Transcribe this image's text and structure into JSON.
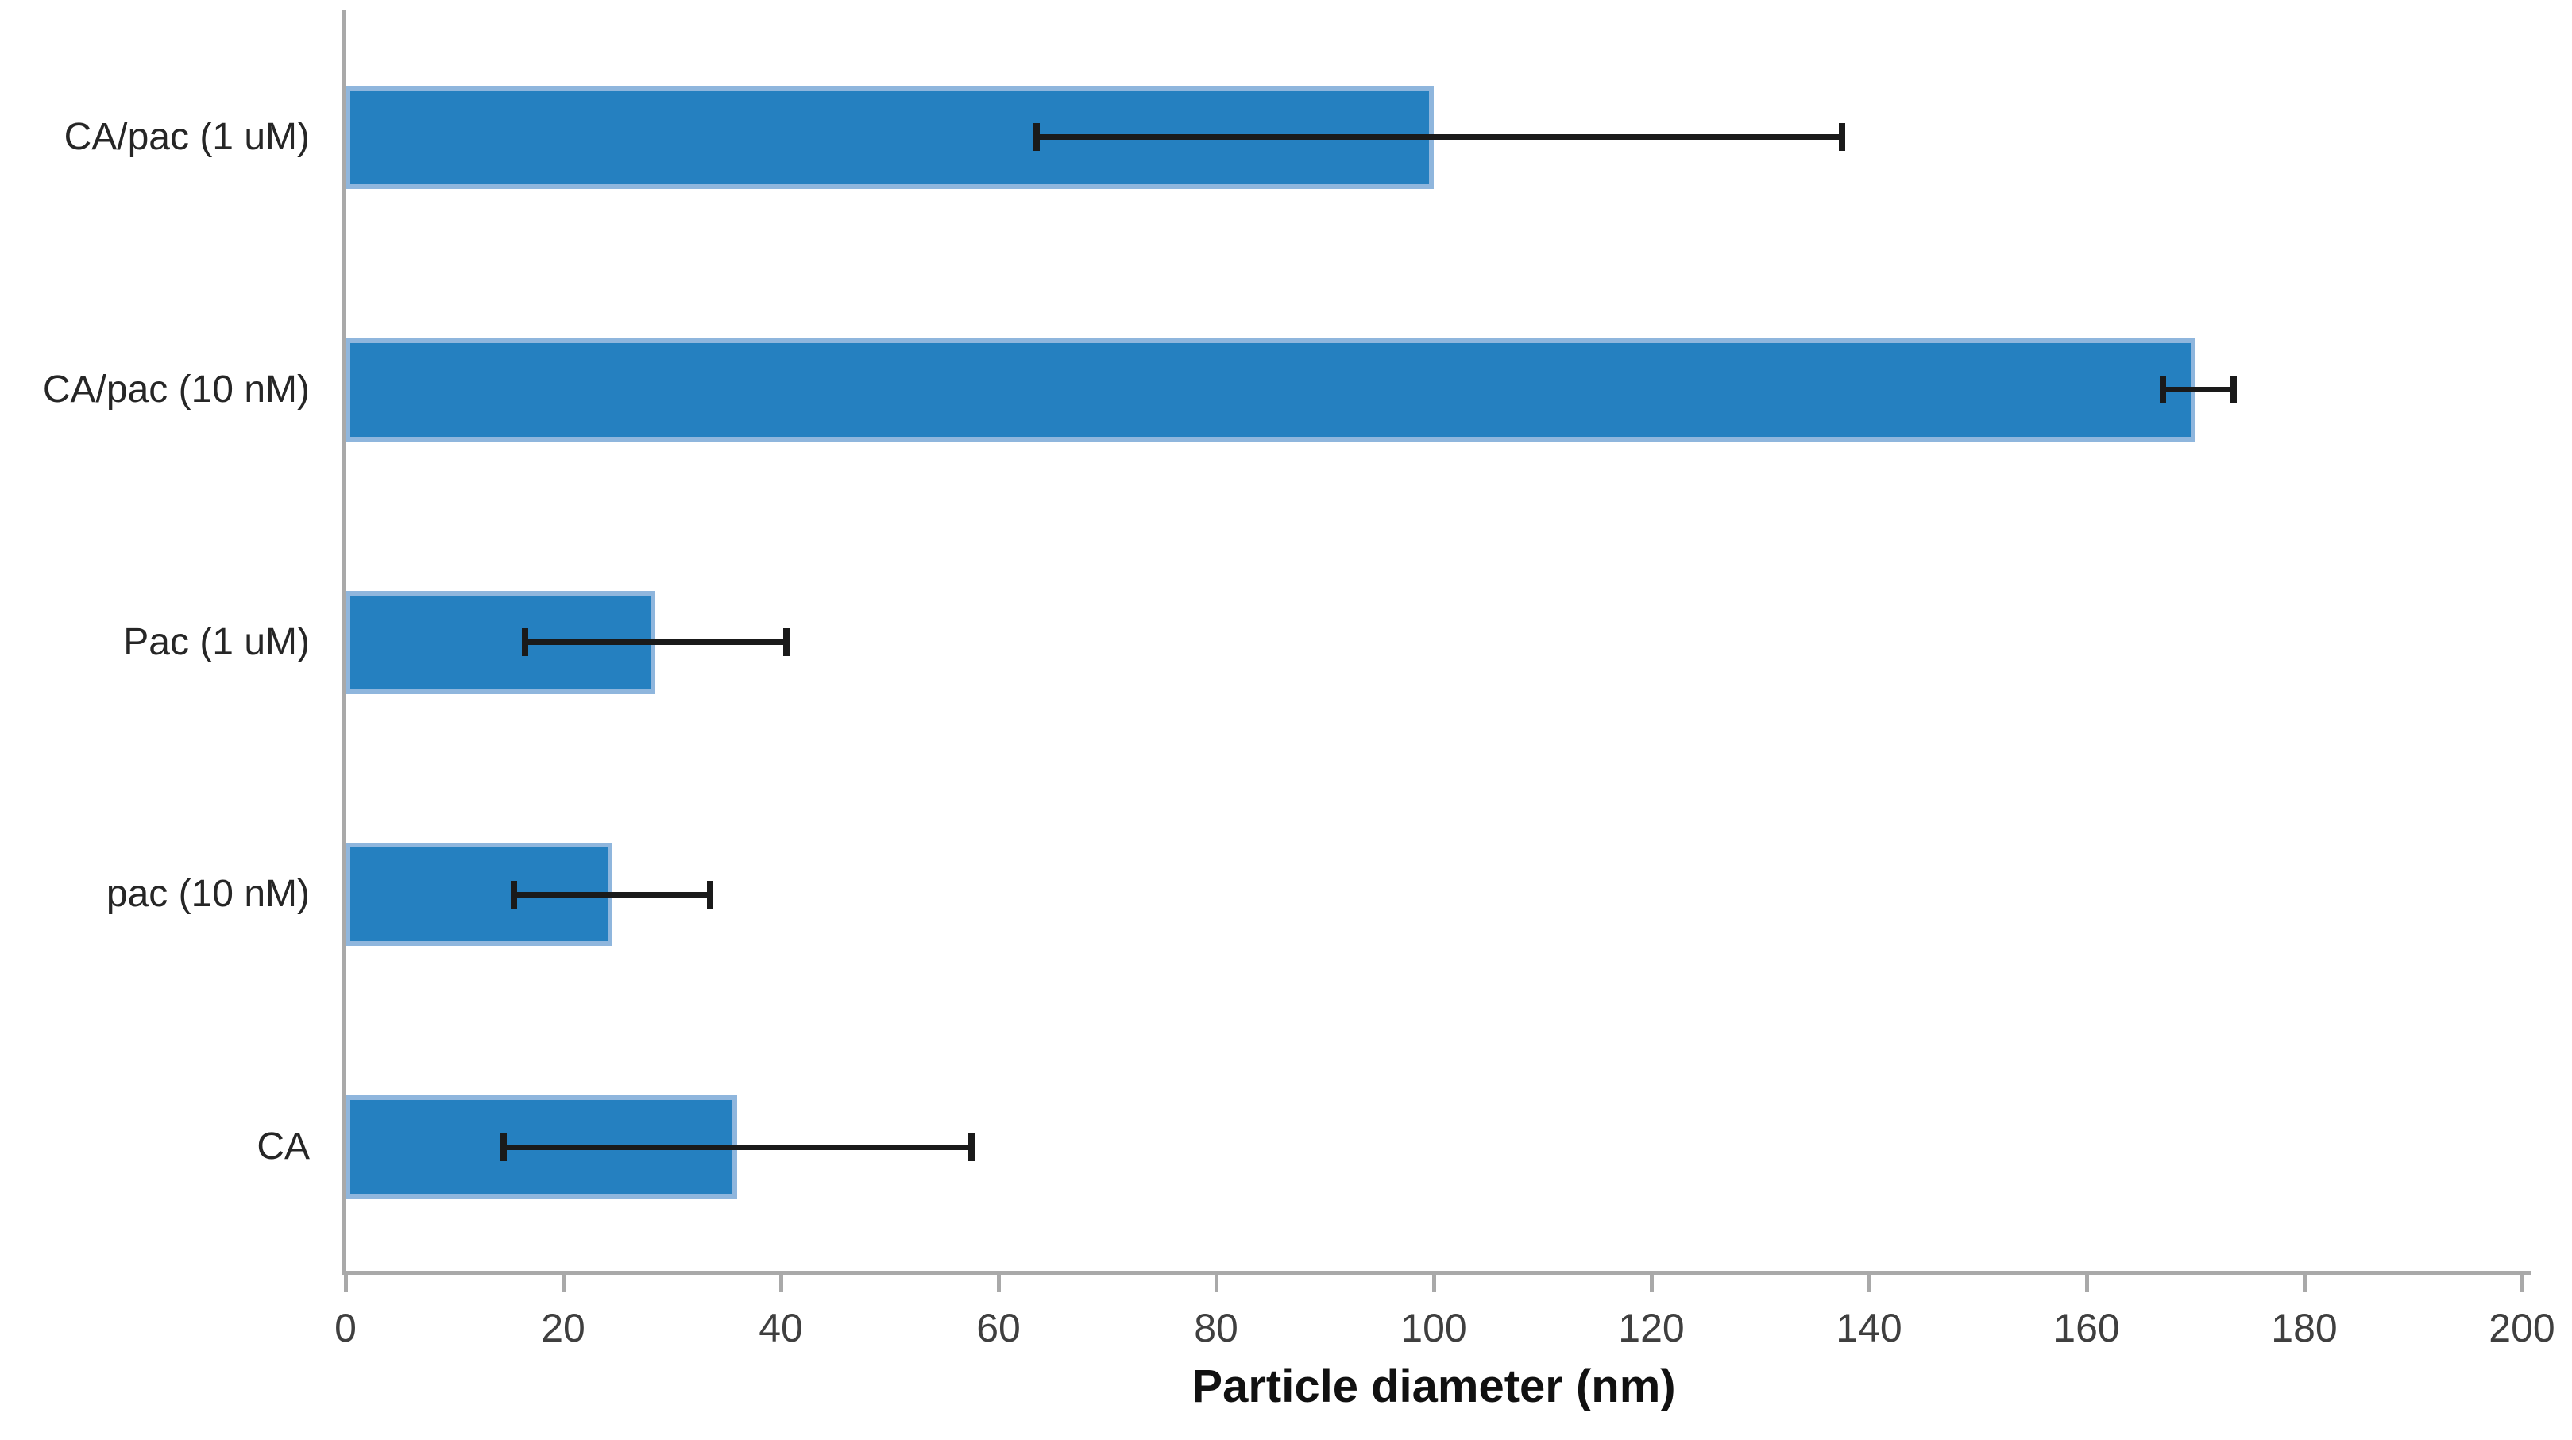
{
  "chart_data": {
    "type": "bar",
    "orientation": "horizontal",
    "title": "",
    "xlabel": "Particle diameter (nm)",
    "ylabel": "",
    "categories": [
      "CA/pac (1 uM)",
      "CA/pac (10 nM)",
      "Pac (1 uM)",
      "pac (10 nM)",
      "CA"
    ],
    "values": [
      100,
      170,
      28.5,
      24.5,
      36
    ],
    "error_low": [
      63.5,
      167,
      16.5,
      15.5,
      14.5
    ],
    "error_high": [
      137.5,
      173.5,
      40.5,
      33.5,
      57.5
    ],
    "xlim": [
      0,
      200
    ],
    "xticks": [
      0,
      20,
      40,
      60,
      80,
      100,
      120,
      140,
      160,
      180,
      200
    ],
    "grid": false,
    "legend": false,
    "colors": {
      "bar_fill": "#2580c0",
      "bar_edge": "#8fb6dd",
      "error_bar": "#1a1a1a",
      "axis_line": "#a9a9a9",
      "tick_label": "#3f3f3f",
      "category_label": "#262626",
      "axis_title": "#111111",
      "background": "#ffffff"
    }
  }
}
